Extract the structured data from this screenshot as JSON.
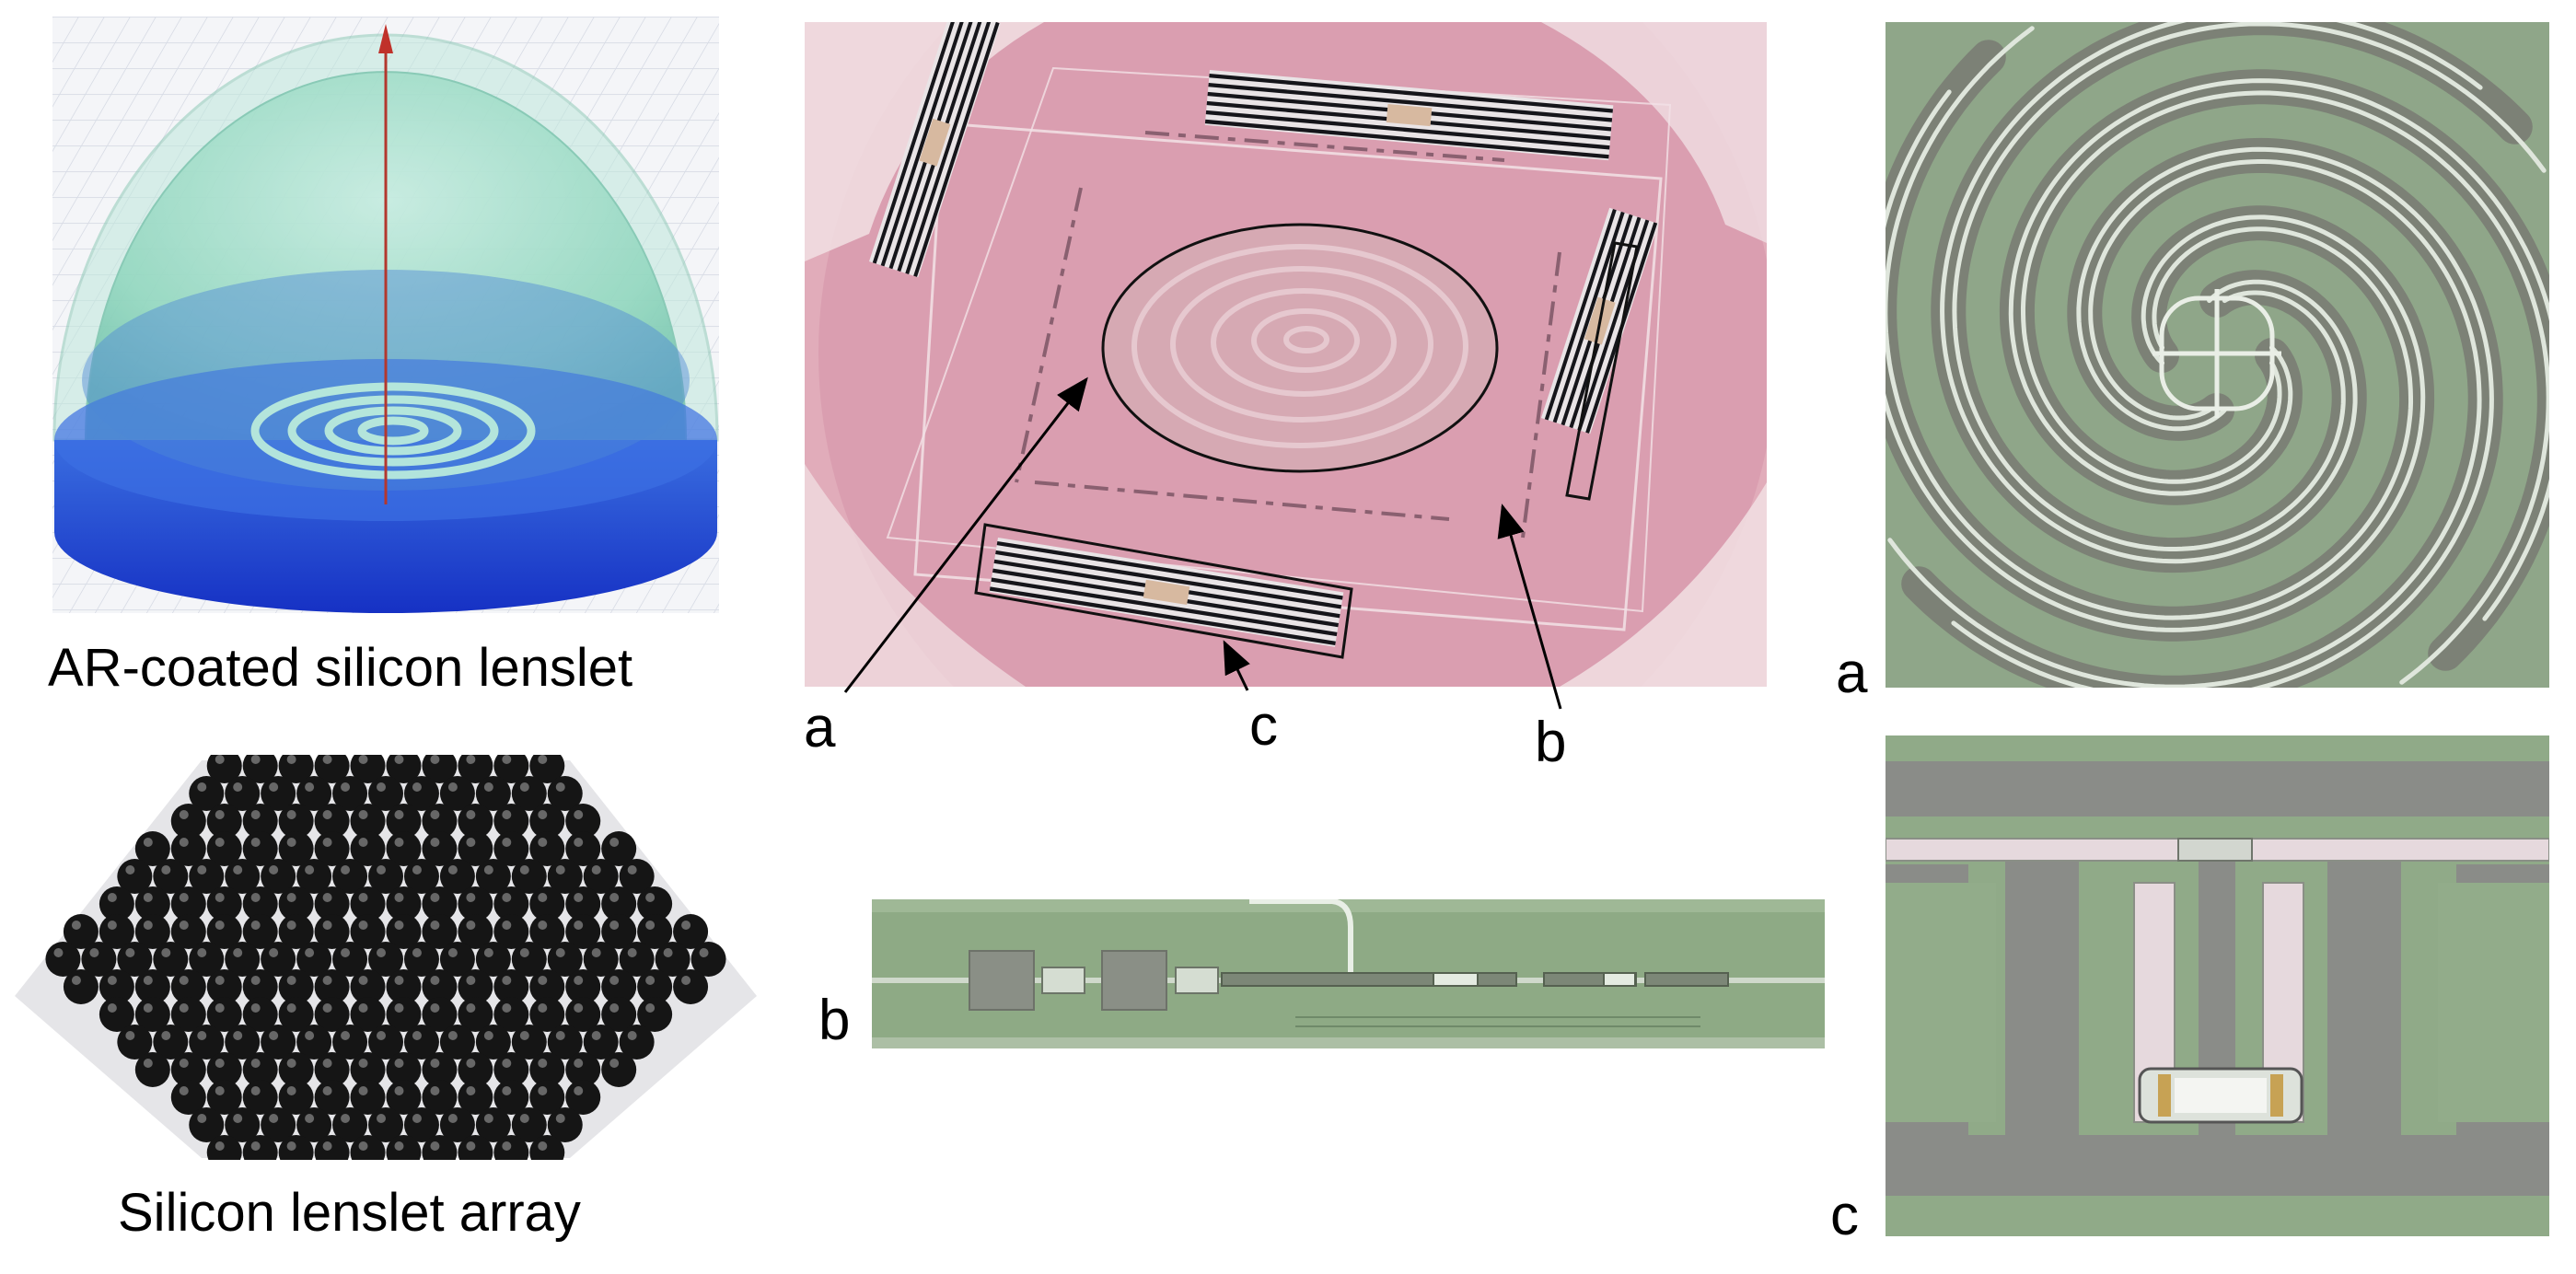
{
  "captions": {
    "lenslet": "AR-coated silicon lenslet",
    "array": "Silicon lenslet array"
  },
  "letters": {
    "center_a": "a",
    "center_c": "c",
    "center_b": "b",
    "strip_b": "b",
    "right_a": "a",
    "right_c": "c"
  },
  "colors": {
    "wafer_pink": "#d79aa8",
    "chip_green": "#8fae88",
    "lens_blue": "#1f3fd6",
    "lens_dome": "#9fdcc8"
  }
}
